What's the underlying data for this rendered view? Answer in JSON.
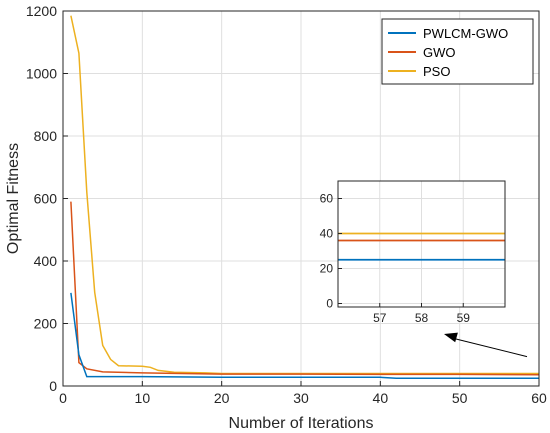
{
  "chart_data": {
    "type": "line",
    "title": "",
    "xlabel": "Number of Iterations",
    "ylabel": "Optimal Fitness",
    "xlim": [
      0,
      60
    ],
    "ylim": [
      0,
      1200
    ],
    "xticks": [
      0,
      10,
      20,
      30,
      40,
      50,
      60
    ],
    "yticks": [
      0,
      200,
      400,
      600,
      800,
      1000,
      1200
    ],
    "grid": true,
    "legend": "top-right",
    "series": [
      {
        "name": "PWLCM-GWO",
        "color": "#0072BD",
        "x": [
          1,
          2,
          3,
          5,
          10,
          20,
          30,
          40,
          42,
          50,
          60
        ],
        "y": [
          298,
          100,
          30,
          30,
          30,
          28,
          28,
          28,
          25,
          25,
          25
        ]
      },
      {
        "name": "GWO",
        "color": "#D95319",
        "x": [
          1,
          2,
          3,
          5,
          10,
          15,
          20,
          30,
          40,
          50,
          60
        ],
        "y": [
          590,
          75,
          55,
          45,
          42,
          40,
          38,
          38,
          37,
          37,
          36
        ]
      },
      {
        "name": "PSO",
        "color": "#EDB120",
        "x": [
          1,
          2,
          3,
          4,
          5,
          6,
          7,
          10,
          11,
          12,
          14,
          18,
          20,
          30,
          40,
          50,
          60
        ],
        "y": [
          1185,
          1065,
          620,
          300,
          130,
          85,
          65,
          63,
          60,
          50,
          44,
          42,
          40,
          40,
          40,
          40,
          40
        ]
      }
    ],
    "inset": {
      "xlim": [
        56,
        60
      ],
      "ylim": [
        -2,
        70
      ],
      "xticks": [
        57,
        58,
        59
      ],
      "yticks": [
        0,
        20,
        40,
        60
      ],
      "grid": true,
      "series_values": {
        "PWLCM-GWO": 25,
        "GWO": 36,
        "PSO": 40
      },
      "arrow_target": [
        60,
        30
      ]
    }
  }
}
